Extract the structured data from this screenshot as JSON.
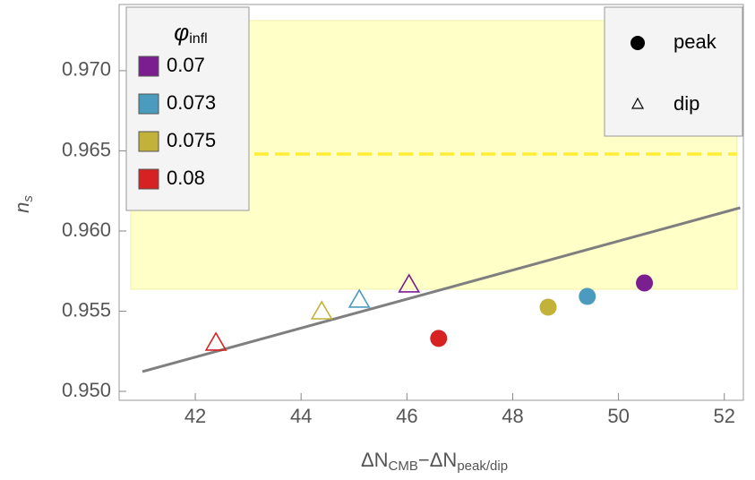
{
  "chart_data": {
    "type": "scatter",
    "xlabel": [
      "ΔN",
      "CMB",
      "−ΔN",
      "peak/dip"
    ],
    "ylabel": [
      "n",
      "s"
    ],
    "xlim": [
      40.56,
      52.36
    ],
    "ylim": [
      0.94944,
      0.97413
    ],
    "xticks": [
      42,
      44,
      46,
      48,
      50,
      52
    ],
    "yticks": [
      {
        "value": 0.95,
        "label": "0.950"
      },
      0.955,
      {
        "value": 0.96,
        "label": "0.960"
      },
      0.965,
      {
        "value": 0.97,
        "label": "0.970"
      }
    ],
    "band": {
      "x": [
        40.78,
        52.24
      ],
      "y": [
        0.95637,
        0.97313
      ],
      "color": "#ffffc8"
    },
    "reference_y": 0.9648,
    "reference_color": "#ffee33",
    "line": {
      "x": [
        41,
        52.3
      ],
      "y": [
        0.95123,
        0.96145
      ],
      "color": "#7f7f7f"
    },
    "legend_title": [
      "φ",
      "infl"
    ],
    "markers": [
      "peak",
      "dip"
    ],
    "series": [
      {
        "name": "0.07",
        "color": "#7b1e8f",
        "peak": {
          "x": 50.49,
          "y": 0.95676
        },
        "dip": {
          "x": 46.04,
          "y": 0.95665
        }
      },
      {
        "name": "0.073",
        "color": "#4a9bbd",
        "peak": {
          "x": 49.41,
          "y": 0.95592
        },
        "dip": {
          "x": 45.1,
          "y": 0.9557
        }
      },
      {
        "name": "0.075",
        "color": "#c2b23a",
        "peak": {
          "x": 48.67,
          "y": 0.95525
        },
        "dip": {
          "x": 44.39,
          "y": 0.95497
        }
      },
      {
        "name": "0.08",
        "color": "#d62222",
        "peak": {
          "x": 46.6,
          "y": 0.9533
        },
        "dip": {
          "x": 42.39,
          "y": 0.95302
        }
      }
    ]
  }
}
